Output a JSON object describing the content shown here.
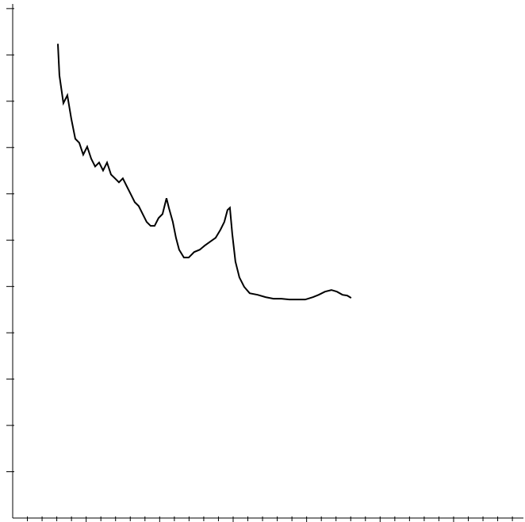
{
  "chart_data": {
    "type": "line",
    "x": [
      0.615,
      0.636,
      0.69,
      0.744,
      0.798,
      0.852,
      0.906,
      0.96,
      1.014,
      1.068,
      1.122,
      1.176,
      1.23,
      1.284,
      1.338,
      1.392,
      1.446,
      1.499,
      1.553,
      1.607,
      1.661,
      1.715,
      1.769,
      1.823,
      1.877,
      1.931,
      1.985,
      2.039,
      2.093,
      2.125,
      2.179,
      2.222,
      2.265,
      2.33,
      2.395,
      2.47,
      2.546,
      2.611,
      2.686,
      2.762,
      2.826,
      2.88,
      2.923,
      2.956,
      2.988,
      3.031,
      3.085,
      3.15,
      3.225,
      3.333,
      3.441,
      3.549,
      3.657,
      3.765,
      3.873,
      3.981,
      4.088,
      4.164,
      4.25,
      4.337,
      4.412,
      4.488,
      4.552,
      4.606
    ],
    "series": [
      {
        "color": "#000000",
        "values": [
          5.12,
          4.778,
          4.479,
          4.564,
          4.308,
          4.094,
          4.051,
          3.923,
          4.009,
          3.88,
          3.795,
          3.838,
          3.752,
          3.838,
          3.709,
          3.667,
          3.624,
          3.667,
          3.581,
          3.496,
          3.41,
          3.368,
          3.282,
          3.197,
          3.154,
          3.154,
          3.239,
          3.282,
          3.453,
          3.35,
          3.197,
          3.026,
          2.897,
          2.812,
          2.812,
          2.872,
          2.897,
          2.94,
          2.983,
          3.026,
          3.111,
          3.197,
          3.325,
          3.35,
          3.068,
          2.769,
          2.598,
          2.496,
          2.427,
          2.41,
          2.385,
          2.368,
          2.368,
          2.359,
          2.359,
          2.359,
          2.385,
          2.41,
          2.444,
          2.462,
          2.444,
          2.41,
          2.402,
          2.376
        ]
      }
    ],
    "xlim": [
      0,
      6.95
    ],
    "ylim": [
      0,
      5.55
    ],
    "xticks": [
      1,
      2,
      3,
      4,
      5,
      6
    ],
    "x_minor_ticks": [
      0.2,
      0.4,
      0.6,
      0.8,
      1.2,
      1.4,
      1.6,
      1.8,
      2.2,
      2.4,
      2.6,
      2.8,
      3.2,
      3.4,
      3.6,
      3.8,
      4.2,
      4.4,
      4.6,
      4.8,
      5.2,
      5.4,
      5.6,
      5.8,
      6.2,
      6.4,
      6.6,
      6.8
    ],
    "yticks": [
      1,
      2,
      3,
      4,
      5
    ],
    "y_minor_ticks": [
      0.5,
      1.5,
      2.5,
      3.5,
      4.5,
      5.5
    ],
    "grid": false
  }
}
